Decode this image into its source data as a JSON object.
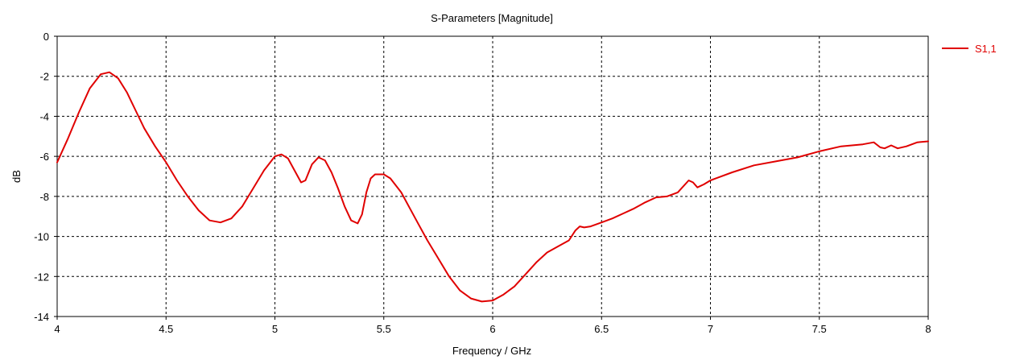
{
  "chart_data": {
    "type": "line",
    "title": "S-Parameters [Magnitude]",
    "xlabel": "Frequency / GHz",
    "ylabel": "dB",
    "xlim": [
      4,
      8
    ],
    "ylim": [
      -14,
      0
    ],
    "xticks": [
      4,
      4.5,
      5,
      5.5,
      6,
      6.5,
      7,
      7.5,
      8
    ],
    "xtick_labels": [
      "4",
      "4.5",
      "5",
      "5.5",
      "6",
      "6.5",
      "7",
      "7.5",
      "8"
    ],
    "yticks": [
      0,
      -2,
      -4,
      -6,
      -8,
      -10,
      -12,
      -14
    ],
    "ytick_labels": [
      "0",
      "-2",
      "-4",
      "-6",
      "-8",
      "-10",
      "-12",
      "-14"
    ],
    "grid": true,
    "legend_position": "top-right-outside",
    "series": [
      {
        "name": "S1,1",
        "color": "#e00000",
        "x": [
          4.0,
          4.05,
          4.1,
          4.15,
          4.2,
          4.24,
          4.28,
          4.32,
          4.36,
          4.4,
          4.45,
          4.5,
          4.55,
          4.6,
          4.65,
          4.7,
          4.75,
          4.8,
          4.85,
          4.9,
          4.95,
          5.0,
          5.03,
          5.06,
          5.09,
          5.12,
          5.14,
          5.17,
          5.2,
          5.23,
          5.26,
          5.29,
          5.32,
          5.35,
          5.38,
          5.4,
          5.42,
          5.44,
          5.46,
          5.48,
          5.5,
          5.53,
          5.58,
          5.62,
          5.66,
          5.7,
          5.75,
          5.8,
          5.85,
          5.9,
          5.95,
          6.0,
          6.05,
          6.1,
          6.15,
          6.2,
          6.25,
          6.3,
          6.35,
          6.38,
          6.4,
          6.42,
          6.45,
          6.5,
          6.55,
          6.6,
          6.65,
          6.7,
          6.75,
          6.8,
          6.85,
          6.9,
          6.92,
          6.94,
          6.97,
          7.0,
          7.1,
          7.2,
          7.3,
          7.4,
          7.5,
          7.6,
          7.7,
          7.75,
          7.78,
          7.8,
          7.83,
          7.86,
          7.9,
          7.95,
          8.0
        ],
        "values": [
          -6.3,
          -5.1,
          -3.8,
          -2.6,
          -1.9,
          -1.8,
          -2.1,
          -2.8,
          -3.7,
          -4.6,
          -5.5,
          -6.3,
          -7.2,
          -8.0,
          -8.7,
          -9.2,
          -9.3,
          -9.1,
          -8.5,
          -7.6,
          -6.7,
          -6.0,
          -5.9,
          -6.1,
          -6.7,
          -7.3,
          -7.2,
          -6.4,
          -6.05,
          -6.2,
          -6.8,
          -7.6,
          -8.5,
          -9.2,
          -9.35,
          -8.9,
          -7.8,
          -7.1,
          -6.9,
          -6.9,
          -6.9,
          -7.1,
          -7.8,
          -8.6,
          -9.4,
          -10.2,
          -11.1,
          -12.0,
          -12.7,
          -13.1,
          -13.25,
          -13.2,
          -12.9,
          -12.5,
          -11.9,
          -11.3,
          -10.8,
          -10.5,
          -10.2,
          -9.7,
          -9.5,
          -9.55,
          -9.5,
          -9.3,
          -9.1,
          -8.85,
          -8.6,
          -8.3,
          -8.05,
          -8.0,
          -7.8,
          -7.2,
          -7.3,
          -7.55,
          -7.4,
          -7.2,
          -6.8,
          -6.45,
          -6.25,
          -6.05,
          -5.75,
          -5.5,
          -5.4,
          -5.3,
          -5.55,
          -5.6,
          -5.45,
          -5.6,
          -5.5,
          -5.3,
          -5.25
        ]
      }
    ]
  }
}
